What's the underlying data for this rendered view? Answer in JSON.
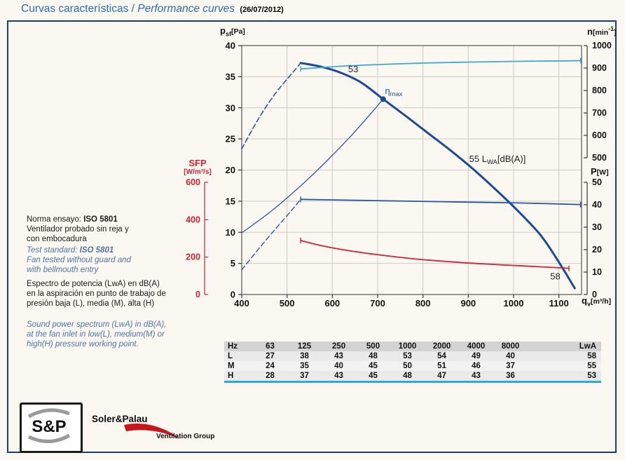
{
  "title": {
    "es": "Curvas características",
    "sep": " / ",
    "en": "Performance curves",
    "date": "(26/07/2012)"
  },
  "notes": {
    "norma_label": "Norma ensayo: ",
    "norma_bold": "ISO 5801",
    "norma_rest": "Ventilador probado sin reja y\ncon embocadura",
    "test_label": "Test standard: ",
    "test_bold": "ISO 5801",
    "test_rest": "Fan tested without guard and\nwith bellmouth entry",
    "espectro": "Espectro de potencia (LwA)\nen dB(A) en la aspiración en\npunto de trabajo de presión\nbaja (L), media (M), alta (H)",
    "sound": "Sound power spectrum (LwA)\nin dB(A), at the fan inlet in\nlow(L), medium(M) or high(H)\npressure working point."
  },
  "axes": {
    "pressure": {
      "sym": "p",
      "sub": "sf",
      "unit": "[Pa]"
    },
    "speed": {
      "sym": "n",
      "unit_pre": "[min",
      "sup": "-1",
      "unit_post": "]"
    },
    "power": {
      "sym": "P",
      "unit": "[W]"
    },
    "sfp": {
      "sym": "SFP",
      "unit": "[W/m³/s]"
    },
    "flow": {
      "sym": "q",
      "sub": "v",
      "unit": "[m³/h]"
    }
  },
  "chart_data": {
    "type": "line",
    "x_axis": {
      "label": "qv [m³/h]",
      "min": 400,
      "max": 1150,
      "ticks": [
        400,
        500,
        600,
        700,
        800,
        900,
        1000,
        1100
      ]
    },
    "y_pressure": {
      "label": "psf [Pa]",
      "min": 0,
      "max": 40,
      "ticks": [
        0,
        5,
        10,
        15,
        20,
        25,
        30,
        35,
        40
      ]
    },
    "y_speed": {
      "label": "n [min-1]",
      "min": 500,
      "max": 1000,
      "ticks": [
        500,
        600,
        700,
        800,
        900,
        1000
      ]
    },
    "y_power": {
      "label": "P [W]",
      "min": 0,
      "max": 50,
      "ticks": [
        0,
        10,
        20,
        30,
        40,
        50
      ]
    },
    "y_sfp": {
      "label": "SFP [W/m3/s]",
      "min": 0,
      "max": 600,
      "ticks": [
        0,
        200,
        400,
        600
      ]
    },
    "grid": true,
    "series": [
      {
        "name": "pressure-curve",
        "axis": "p",
        "style": "solid",
        "width": 3,
        "color": "#1b4a9b",
        "points": [
          [
            530,
            37.2
          ],
          [
            575,
            36.6
          ],
          [
            620,
            35.6
          ],
          [
            665,
            34.0
          ],
          [
            712,
            31.4
          ],
          [
            760,
            28.8
          ],
          [
            810,
            26.0
          ],
          [
            860,
            23.2
          ],
          [
            910,
            20.2
          ],
          [
            960,
            16.9
          ],
          [
            1010,
            13.4
          ],
          [
            1060,
            9.5
          ],
          [
            1100,
            5.2
          ],
          [
            1135,
            1.0
          ]
        ]
      },
      {
        "name": "pressure-curve-unstable",
        "axis": "p",
        "style": "dashed",
        "width": 1.6,
        "color": "#2a56a4",
        "points": [
          [
            400,
            23.4
          ],
          [
            435,
            28.0
          ],
          [
            470,
            31.9
          ],
          [
            500,
            34.6
          ],
          [
            520,
            36.3
          ],
          [
            530,
            37.2
          ]
        ]
      },
      {
        "name": "speed-curve",
        "axis": "n",
        "style": "solid",
        "width": 1.8,
        "color": "#3ea7d7",
        "end_ticks": true,
        "points": [
          [
            530,
            896
          ],
          [
            620,
            908
          ],
          [
            720,
            917
          ],
          [
            820,
            923
          ],
          [
            920,
            927
          ],
          [
            1020,
            930
          ],
          [
            1120,
            932
          ],
          [
            1148,
            933
          ]
        ]
      },
      {
        "name": "power-curve",
        "axis": "P",
        "style": "solid",
        "width": 1.8,
        "color": "#2a56a4",
        "end_ticks": true,
        "points": [
          [
            530,
            42.4
          ],
          [
            650,
            42.0
          ],
          [
            770,
            41.6
          ],
          [
            890,
            41.2
          ],
          [
            1010,
            40.8
          ],
          [
            1148,
            40.1
          ]
        ]
      },
      {
        "name": "power-curve-unstable",
        "axis": "P",
        "style": "dashed",
        "width": 1.4,
        "color": "#2a56a4",
        "points": [
          [
            400,
            11.0
          ],
          [
            440,
            21.0
          ],
          [
            480,
            30.5
          ],
          [
            510,
            37.5
          ],
          [
            530,
            42.4
          ]
        ]
      },
      {
        "name": "system-line",
        "axis": "p",
        "style": "solid",
        "width": 1.3,
        "color": "#2a56a4",
        "points": [
          [
            400,
            9.9
          ],
          [
            460,
            13.1
          ],
          [
            520,
            16.8
          ],
          [
            580,
            20.9
          ],
          [
            640,
            25.4
          ],
          [
            690,
            29.5
          ],
          [
            712,
            31.4
          ]
        ]
      },
      {
        "name": "sfp-curve",
        "axis": "SFP",
        "style": "solid",
        "width": 1.8,
        "color": "#d42036",
        "end_ticks": true,
        "points": [
          [
            530,
            289
          ],
          [
            580,
            259
          ],
          [
            640,
            233
          ],
          [
            710,
            210
          ],
          [
            780,
            191
          ],
          [
            860,
            175
          ],
          [
            940,
            163
          ],
          [
            1020,
            153
          ],
          [
            1100,
            143
          ],
          [
            1122,
            140
          ]
        ]
      }
    ],
    "marker": {
      "name": "eta-max-point",
      "axis": "p",
      "q": 712,
      "value": 31.4,
      "color": "#1b4a9b"
    },
    "annotations": [
      {
        "name": "lwa-high-label",
        "axis": "p",
        "q": 646,
        "value": 35.7,
        "anchor": "middle",
        "color": "#222222",
        "parts": [
          {
            "t": "53"
          }
        ]
      },
      {
        "name": "eta-max-label",
        "axis": "p",
        "q": 716,
        "value": 32.2,
        "anchor": "start",
        "color": "#2a56a4",
        "parts": [
          {
            "t": "η"
          },
          {
            "t": "max",
            "sub": true
          }
        ]
      },
      {
        "name": "lwa-medium-label",
        "axis": "p",
        "q": 902,
        "value": 21.3,
        "anchor": "start",
        "color": "#222222",
        "parts": [
          {
            "t": "55 L"
          },
          {
            "t": "WA",
            "sub": true
          },
          {
            "t": "[dB(A)]"
          }
        ]
      },
      {
        "name": "lwa-low-label",
        "axis": "p",
        "q": 1092,
        "value": 2.4,
        "anchor": "middle",
        "color": "#222222",
        "parts": [
          {
            "t": "58"
          }
        ]
      }
    ]
  },
  "table": {
    "headers": [
      "Hz",
      "63",
      "125",
      "250",
      "500",
      "1000",
      "2000",
      "4000",
      "8000",
      "LwA"
    ],
    "rows": [
      [
        "L",
        "27",
        "38",
        "43",
        "48",
        "53",
        "54",
        "49",
        "40",
        "58"
      ],
      [
        "M",
        "24",
        "35",
        "40",
        "45",
        "50",
        "51",
        "46",
        "37",
        "55"
      ],
      [
        "H",
        "28",
        "37",
        "43",
        "45",
        "48",
        "47",
        "43",
        "36",
        "53"
      ]
    ]
  },
  "logo": {
    "sp": "S&P",
    "company": "Soler&Palau",
    "group": "Ventilation Group"
  }
}
